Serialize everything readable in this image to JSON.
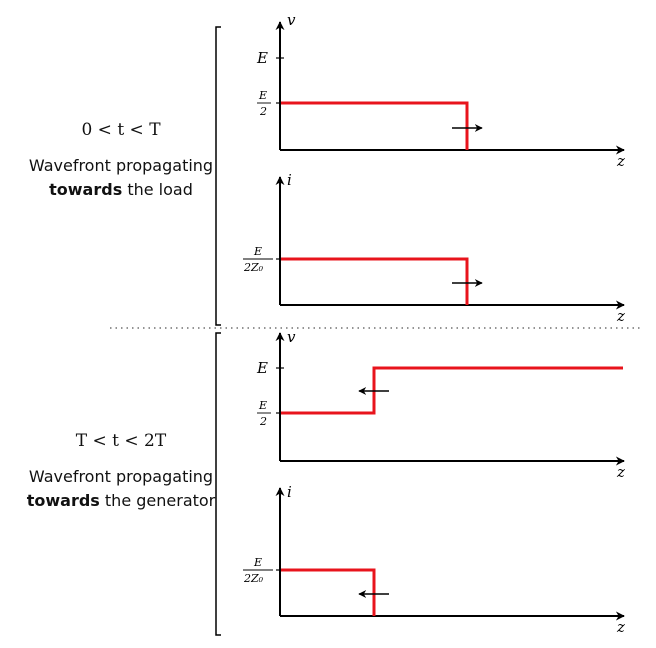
{
  "sections": [
    {
      "condition": "0 < t < T",
      "desc_line1": "Wavefront propagating",
      "desc_bold": "towards",
      "desc_rest": "the load"
    },
    {
      "condition": "T < t < 2T",
      "desc_line1": "Wavefront propagating",
      "desc_bold": "towards",
      "desc_rest": "the generator"
    }
  ],
  "axes": {
    "voltage_label": "v",
    "current_label": "i",
    "position_label": "z"
  },
  "ticks": {
    "E": "E",
    "E_half_num": "E",
    "E_half_den": "2",
    "I_num": "E",
    "I_den": "2Z₀"
  },
  "colors": {
    "wave": "#e8141c",
    "axis": "#000000",
    "divider": "#555555"
  },
  "waveforms": {
    "s1_voltage": {
      "level_left": "E/2",
      "level_right": "0",
      "front_direction": "toward load (+z)"
    },
    "s1_current": {
      "level_left": "E/2Z₀",
      "level_right": "0",
      "front_direction": "toward load (+z)"
    },
    "s2_voltage": {
      "level_left": "E/2",
      "level_right": "E",
      "front_direction": "toward generator (−z)"
    },
    "s2_current": {
      "level_left": "E/2Z₀",
      "level_right": "0",
      "front_direction": "toward generator (−z)"
    }
  }
}
